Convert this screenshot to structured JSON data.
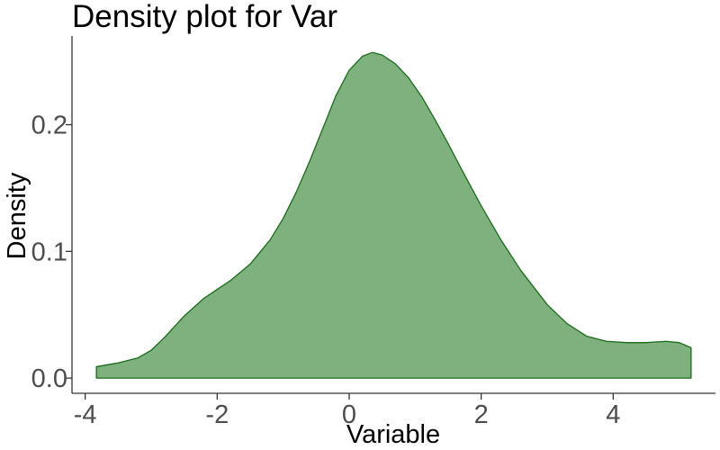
{
  "chart_data": {
    "type": "area",
    "title": "Density plot for Var",
    "xlabel": "Variable",
    "ylabel": "Density",
    "xlim": [
      -4.2,
      5.55
    ],
    "ylim": [
      -0.012,
      0.27
    ],
    "grid": false,
    "legend": "none",
    "x_ticks": [
      {
        "value": -4,
        "label": "-4"
      },
      {
        "value": -2,
        "label": "-2"
      },
      {
        "value": 0,
        "label": "0"
      },
      {
        "value": 2,
        "label": "2"
      },
      {
        "value": 4,
        "label": "4"
      }
    ],
    "y_ticks": [
      {
        "value": 0.0,
        "label": "0.0"
      },
      {
        "value": 0.1,
        "label": "0.1"
      },
      {
        "value": 0.2,
        "label": "0.2"
      }
    ],
    "series": [
      {
        "fill_color": "#7fb17f",
        "line_color": "#1a6b1a",
        "x": [
          -3.83,
          -3.5,
          -3.2,
          -3.0,
          -2.8,
          -2.5,
          -2.2,
          -2.0,
          -1.8,
          -1.5,
          -1.2,
          -1.0,
          -0.8,
          -0.6,
          -0.4,
          -0.2,
          0.0,
          0.2,
          0.35,
          0.5,
          0.7,
          0.9,
          1.1,
          1.3,
          1.5,
          1.7,
          2.0,
          2.3,
          2.6,
          3.0,
          3.3,
          3.6,
          3.9,
          4.2,
          4.5,
          4.8,
          5.0,
          5.18
        ],
        "y": [
          0.009,
          0.012,
          0.016,
          0.022,
          0.032,
          0.049,
          0.063,
          0.07,
          0.077,
          0.09,
          0.109,
          0.126,
          0.147,
          0.171,
          0.197,
          0.223,
          0.243,
          0.254,
          0.257,
          0.255,
          0.248,
          0.237,
          0.222,
          0.204,
          0.185,
          0.165,
          0.136,
          0.109,
          0.085,
          0.058,
          0.043,
          0.033,
          0.029,
          0.028,
          0.028,
          0.029,
          0.028,
          0.024
        ]
      }
    ]
  }
}
